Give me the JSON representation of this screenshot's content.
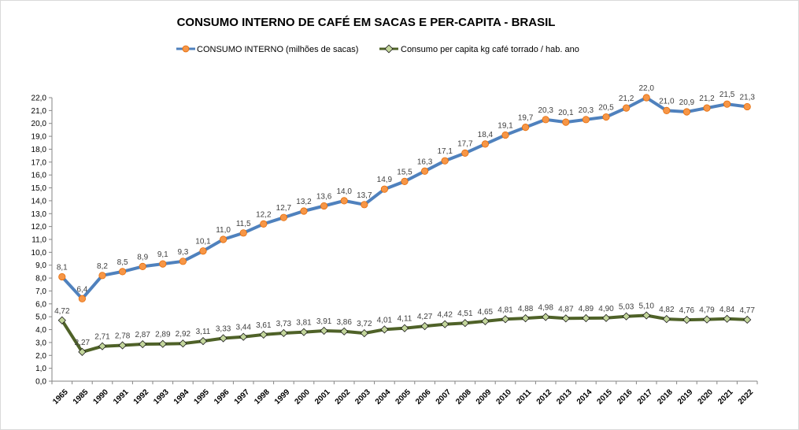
{
  "chart_data": {
    "type": "line",
    "title": "CONSUMO INTERNO DE CAFÉ EM SACAS E PER-CAPITA - BRASIL",
    "categories": [
      "1965",
      "1985",
      "1990",
      "1991",
      "1992",
      "1993",
      "1994",
      "1995",
      "1996",
      "1997",
      "1998",
      "1999",
      "2000",
      "2001",
      "2002",
      "2003",
      "2004",
      "2005",
      "2006",
      "2007",
      "2008",
      "2009",
      "2010",
      "2011",
      "2012",
      "2013",
      "2014",
      "2015",
      "2016",
      "2017",
      "2018",
      "2019",
      "2020",
      "2021",
      "2022"
    ],
    "series": [
      {
        "name": "CONSUMO INTERNO (milhões de sacas)",
        "color": "#4f81bd",
        "marker_color": "#f79646",
        "values": [
          8.1,
          6.4,
          8.2,
          8.5,
          8.9,
          9.1,
          9.3,
          10.1,
          11.0,
          11.5,
          12.2,
          12.7,
          13.2,
          13.6,
          14.0,
          13.7,
          14.9,
          15.5,
          16.3,
          17.1,
          17.7,
          18.4,
          19.1,
          19.7,
          20.3,
          20.1,
          20.3,
          20.5,
          21.2,
          22.0,
          21.0,
          20.9,
          21.2,
          21.5,
          21.3
        ],
        "labels": [
          "8,1",
          "6,4",
          "8,2",
          "8,5",
          "8,9",
          "9,1",
          "9,3",
          "10,1",
          "11,0",
          "11,5",
          "12,2",
          "12,7",
          "13,2",
          "13,6",
          "14,0",
          "13,7",
          "14,9",
          "15,5",
          "16,3",
          "17,1",
          "17,7",
          "18,4",
          "19,1",
          "19,7",
          "20,3",
          "20,1",
          "20,3",
          "20,5",
          "21,2",
          "22,0",
          "21,0",
          "20,9",
          "21,2",
          "21,5",
          "21,3"
        ]
      },
      {
        "name": "Consumo per capita kg café torrado / hab. ano",
        "color": "#4f6228",
        "marker_color": "#c3d69b",
        "values": [
          4.72,
          2.27,
          2.71,
          2.78,
          2.87,
          2.89,
          2.92,
          3.11,
          3.33,
          3.44,
          3.61,
          3.73,
          3.81,
          3.91,
          3.86,
          3.72,
          4.01,
          4.11,
          4.27,
          4.42,
          4.51,
          4.65,
          4.81,
          4.88,
          4.98,
          4.87,
          4.89,
          4.9,
          5.03,
          5.1,
          4.82,
          4.76,
          4.79,
          4.84,
          4.77
        ],
        "labels": [
          "4,72",
          "2,27",
          "2,71",
          "2,78",
          "2,87",
          "2,89",
          "2,92",
          "3,11",
          "3,33",
          "3,44",
          "3,61",
          "3,73",
          "3,81",
          "3,91",
          "3,86",
          "3,72",
          "4,01",
          "4,11",
          "4,27",
          "4,42",
          "4,51",
          "4,65",
          "4,81",
          "4,88",
          "4,98",
          "4,87",
          "4,89",
          "4,90",
          "5,03",
          "5,10",
          "4,82",
          "4,76",
          "4,79",
          "4,84",
          "4,77"
        ]
      }
    ],
    "yticks": [
      "0,0",
      "1,0",
      "2,0",
      "3,0",
      "4,0",
      "5,0",
      "6,0",
      "7,0",
      "8,0",
      "9,0",
      "10,0",
      "11,0",
      "12,0",
      "13,0",
      "14,0",
      "15,0",
      "16,0",
      "17,0",
      "18,0",
      "19,0",
      "20,0",
      "21,0",
      "22,0"
    ],
    "ylim": [
      0,
      22
    ],
    "grid": false,
    "legend_position": "top"
  }
}
